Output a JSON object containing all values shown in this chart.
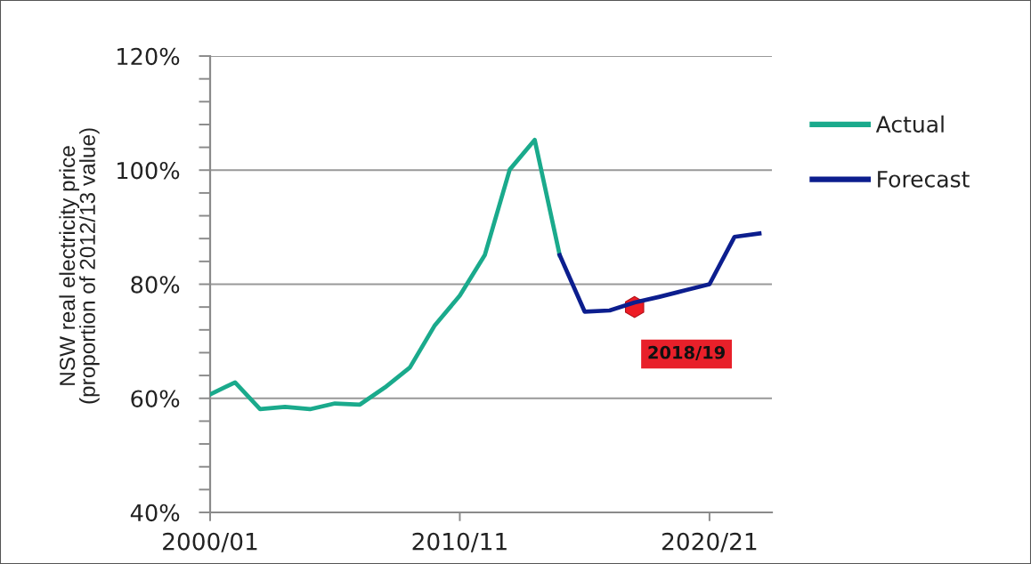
{
  "chart_data": {
    "type": "line",
    "ylabel": "NSW real electricity price\n(proportion of 2012/13 value)",
    "categories": [
      "2000/01",
      null,
      null,
      null,
      null,
      null,
      null,
      null,
      null,
      null,
      "2010/11",
      null,
      null,
      null,
      null,
      null,
      null,
      null,
      null,
      null,
      "2020/21",
      null,
      null
    ],
    "series": [
      {
        "name": "Actual",
        "color": "#1aaa8c",
        "values": [
          60.7,
          62.8,
          58.1,
          58.5,
          58.1,
          59.1,
          58.9,
          61.9,
          65.4,
          72.8,
          78.0,
          85.1,
          100.1,
          105.3,
          85.1,
          null,
          null,
          null,
          null,
          null,
          null,
          null,
          null
        ]
      },
      {
        "name": "Forecast",
        "color": "#0c1e8e",
        "values": [
          null,
          null,
          null,
          null,
          null,
          null,
          null,
          null,
          null,
          null,
          null,
          null,
          null,
          null,
          85.1,
          75.2,
          75.4,
          76.8,
          77.8,
          78.9,
          80.0,
          88.3,
          88.9
        ]
      },
      {
        "type": "scatter",
        "color": "#ee1c25",
        "values": [
          null,
          null,
          null,
          null,
          null,
          null,
          null,
          null,
          null,
          null,
          null,
          null,
          null,
          null,
          null,
          null,
          null,
          76.0,
          null,
          null,
          null,
          null,
          null
        ]
      }
    ],
    "annotations": [
      "2018/19"
    ],
    "ylim": [
      40,
      120
    ],
    "yticks": [
      {
        "value": 40,
        "label": "40%"
      },
      {
        "value": 44,
        "label": null
      },
      {
        "value": 48,
        "label": null
      },
      {
        "value": 52,
        "label": null
      },
      {
        "value": 56,
        "label": null
      },
      {
        "value": 60,
        "label": "60%"
      },
      {
        "value": 64,
        "label": null
      },
      {
        "value": 68,
        "label": null
      },
      {
        "value": 72,
        "label": null
      },
      {
        "value": 76,
        "label": null
      },
      {
        "value": 80,
        "label": "80%"
      },
      {
        "value": 84,
        "label": null
      },
      {
        "value": 88,
        "label": null
      },
      {
        "value": 92,
        "label": null
      },
      {
        "value": 96,
        "label": null
      },
      {
        "value": 100,
        "label": "100%"
      },
      {
        "value": 104,
        "label": null
      },
      {
        "value": 108,
        "label": null
      },
      {
        "value": 112,
        "label": null
      },
      {
        "value": 116,
        "label": null
      },
      {
        "value": 120,
        "label": "120%"
      }
    ],
    "grid": "y",
    "legend": "right",
    "line_style": "solid"
  }
}
